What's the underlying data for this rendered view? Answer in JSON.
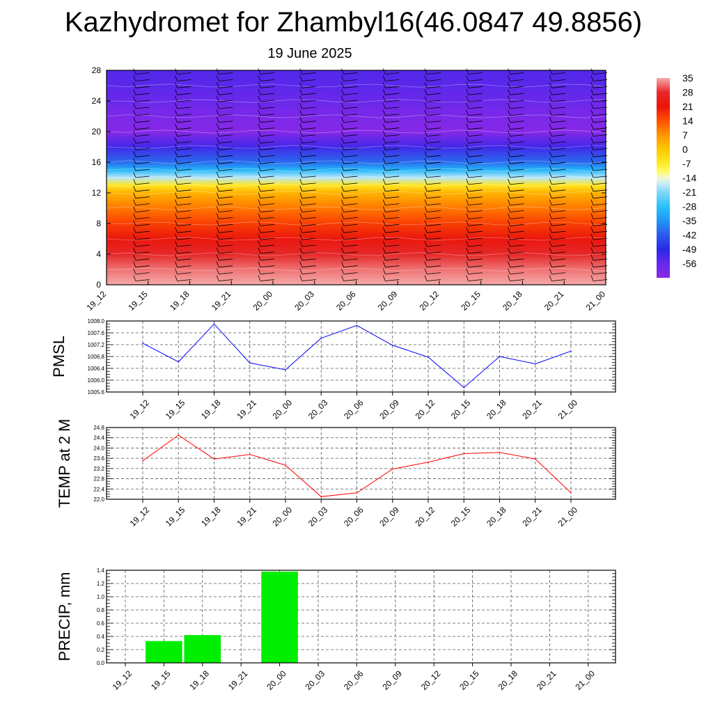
{
  "title": "Kazhydromet for Zhambyl16(46.0847 49.8856)",
  "subtitle": "19 June 2025",
  "colors": {
    "pmsl_line": "#0000ff",
    "temp_line": "#ff0000",
    "precip_bar": "#00ee00"
  },
  "chart_data": [
    {
      "type": "heatmap",
      "title": "",
      "x_ticks": [
        "19_12",
        "19_15",
        "19_18",
        "19_21",
        "20_00",
        "20_03",
        "20_06",
        "20_09",
        "20_12",
        "20_15",
        "20_18",
        "20_21",
        "21_00"
      ],
      "y_ticks": [
        "0",
        "4",
        "8",
        "12",
        "16",
        "20",
        "24",
        "28"
      ],
      "ylim": [
        0,
        28
      ],
      "colorbar": {
        "labels": [
          "35",
          "28",
          "21",
          "14",
          "7",
          "0",
          "-7",
          "-14",
          "-21",
          "-28",
          "-35",
          "-42",
          "-49",
          "-56"
        ],
        "range": [
          -63,
          35
        ]
      },
      "profile_levels": [
        0,
        2,
        4,
        6,
        8,
        10,
        12,
        13,
        14,
        15,
        16,
        18,
        20,
        22,
        24,
        26,
        28
      ],
      "profile_temperature": [
        35,
        32,
        28,
        22,
        16,
        10,
        3,
        -6,
        -18,
        -30,
        -40,
        -52,
        -62,
        -60,
        -57,
        -55,
        -54
      ],
      "wind_barbs": true
    },
    {
      "type": "line",
      "ylabel": "PMSL",
      "x": [
        "19_12",
        "19_15",
        "19_18",
        "19_21",
        "20_00",
        "20_03",
        "20_06",
        "20_09",
        "20_12",
        "20_15",
        "20_18",
        "20_21",
        "21_00"
      ],
      "values": [
        1007.25,
        1006.62,
        1007.9,
        1006.58,
        1006.35,
        1007.42,
        1007.85,
        1007.18,
        1006.78,
        1005.75,
        1006.8,
        1006.55,
        1006.98
      ],
      "ylim": [
        1005.6,
        1008.0
      ],
      "y_ticks": [
        "1005.6",
        "1006.0",
        "1006.4",
        "1006.8",
        "1007.2",
        "1007.6",
        "1008.0"
      ],
      "grid": true
    },
    {
      "type": "line",
      "ylabel": "TEMP at 2 M",
      "x": [
        "19_12",
        "19_15",
        "19_18",
        "19_21",
        "20_00",
        "20_03",
        "20_06",
        "20_09",
        "20_12",
        "20_15",
        "20_18",
        "20_21",
        "21_00"
      ],
      "values": [
        23.5,
        24.5,
        23.57,
        23.75,
        23.33,
        22.1,
        22.25,
        23.18,
        23.45,
        23.78,
        23.83,
        23.57,
        22.25
      ],
      "ylim": [
        22.0,
        24.8
      ],
      "y_ticks": [
        "22.0",
        "22.4",
        "22.8",
        "23.2",
        "23.6",
        "24.0",
        "24.4",
        "24.8"
      ],
      "grid": true
    },
    {
      "type": "bar",
      "ylabel": "PRECIP, mm",
      "categories": [
        "19_12",
        "19_15",
        "19_18",
        "19_21",
        "20_00",
        "20_03",
        "20_06",
        "20_09",
        "20_12",
        "20_15",
        "20_18",
        "20_21",
        "21_00"
      ],
      "values": [
        0,
        0.33,
        0.42,
        0,
        1.38,
        0,
        0,
        0,
        0,
        0,
        0,
        0,
        0
      ],
      "ylim": [
        0,
        1.4
      ],
      "y_ticks": [
        "0.0",
        "0.2",
        "0.4",
        "0.6",
        "0.8",
        "1.0",
        "1.2",
        "1.4"
      ],
      "grid": true
    }
  ]
}
